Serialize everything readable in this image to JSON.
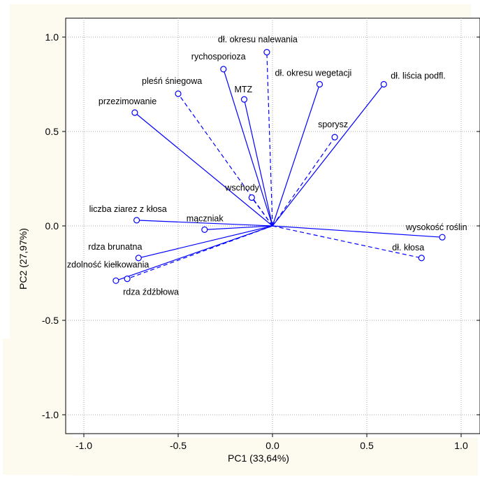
{
  "chart_data": {
    "type": "scatter",
    "title": "",
    "xlabel": "PC1 (33,64%)",
    "ylabel": "PC2 (27,97%)",
    "xlim": [
      -1.1,
      1.1
    ],
    "ylim": [
      -1.1,
      1.1
    ],
    "xticks": [
      -1.0,
      -0.5,
      0.0,
      0.5,
      1.0
    ],
    "yticks": [
      -1.0,
      -0.5,
      0.0,
      0.5,
      1.0
    ],
    "xtick_labels": [
      "-1.0",
      "-0.5",
      "0.0",
      "0.5",
      "1.0"
    ],
    "ytick_labels": [
      "-1.0",
      "-0.5",
      "0.0",
      "0.5",
      "1.0"
    ],
    "grid": true,
    "legend": "none",
    "line_color": "#0000ff",
    "background_color": "#fdfaf0",
    "points": [
      {
        "label": "dł. okresu nalewania",
        "x": -0.03,
        "y": 0.92,
        "dashed": true
      },
      {
        "label": "rychosporioza",
        "x": -0.26,
        "y": 0.83,
        "dashed": false
      },
      {
        "label": "dł. okresu wegetacji",
        "x": 0.25,
        "y": 0.75,
        "dashed": false
      },
      {
        "label": "dł. liścia podfl.",
        "x": 0.59,
        "y": 0.75,
        "dashed": false
      },
      {
        "label": "pleśń śniegowa",
        "x": -0.5,
        "y": 0.7,
        "dashed": true
      },
      {
        "label": "MTZ",
        "x": -0.15,
        "y": 0.67,
        "dashed": false
      },
      {
        "label": "przezimowanie",
        "x": -0.73,
        "y": 0.6,
        "dashed": false
      },
      {
        "label": "sporysz",
        "x": 0.33,
        "y": 0.47,
        "dashed": true
      },
      {
        "label": "wschody",
        "x": -0.11,
        "y": 0.15,
        "dashed": true
      },
      {
        "label": "liczba ziarez z kłosa",
        "x": -0.72,
        "y": 0.03,
        "dashed": false
      },
      {
        "label": "mączniak",
        "x": -0.36,
        "y": -0.02,
        "dashed": false
      },
      {
        "label": "wysokość roślin",
        "x": 0.9,
        "y": -0.06,
        "dashed": false
      },
      {
        "label": "dł. kłosa",
        "x": 0.79,
        "y": -0.17,
        "dashed": true
      },
      {
        "label": "rdza brunatna",
        "x": -0.71,
        "y": -0.17,
        "dashed": false
      },
      {
        "label": "zdolność kiełkowania",
        "x": -0.83,
        "y": -0.29,
        "dashed": false
      },
      {
        "label": "rdza źdźbłowa",
        "x": -0.77,
        "y": -0.28,
        "dashed": true
      }
    ]
  }
}
